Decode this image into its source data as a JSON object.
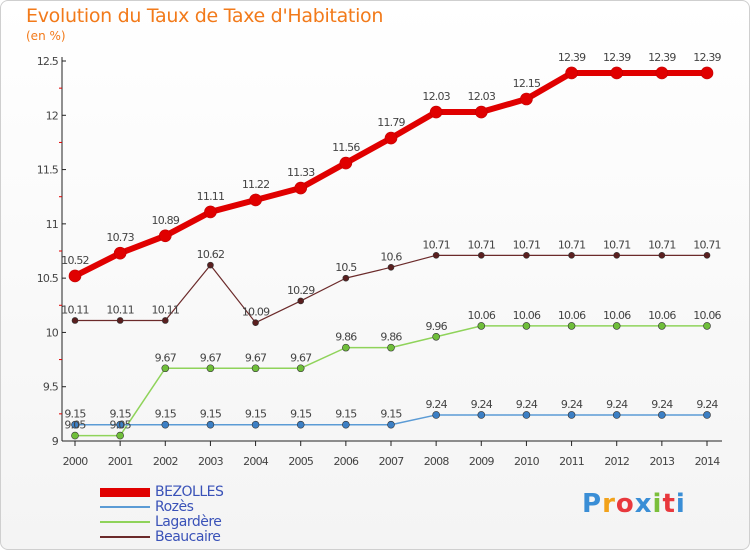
{
  "title": "Evolution du Taux de Taxe d'Habitation",
  "subtitle": "(en %)",
  "logo_text": "Proxiti",
  "chart_data": {
    "type": "line",
    "title": "Evolution du Taux de Taxe d'Habitation",
    "subtitle": "(en %)",
    "xlabel": "",
    "ylabel": "",
    "x": [
      "2000",
      "2001",
      "2002",
      "2003",
      "2004",
      "2005",
      "2006",
      "2007",
      "2008",
      "2009",
      "2010",
      "2011",
      "2012",
      "2013",
      "2014"
    ],
    "ylim": [
      9,
      12.5
    ],
    "yticks": [
      "9",
      "9.5",
      "10",
      "10.5",
      "11",
      "11.5",
      "12",
      "12.5"
    ],
    "grid": false,
    "legend_position": "bottom-left",
    "series": [
      {
        "name": "BEZOLLES",
        "color": "#e00000",
        "values": [
          10.52,
          10.73,
          10.89,
          11.11,
          11.22,
          11.33,
          11.56,
          11.79,
          12.03,
          12.03,
          12.15,
          12.39,
          12.39,
          12.39,
          12.39
        ]
      },
      {
        "name": "Rozès",
        "color": "#5b9bd5",
        "values": [
          9.15,
          9.15,
          9.15,
          9.15,
          9.15,
          9.15,
          9.15,
          9.15,
          9.24,
          9.24,
          9.24,
          9.24,
          9.24,
          9.24,
          9.24
        ]
      },
      {
        "name": "Lagardère",
        "color": "#8fd35a",
        "values": [
          9.05,
          9.05,
          9.67,
          9.67,
          9.67,
          9.67,
          9.86,
          9.86,
          9.96,
          10.06,
          10.06,
          10.06,
          10.06,
          10.06,
          10.06
        ]
      },
      {
        "name": "Beaucaire",
        "color": "#6b2a2a",
        "values": [
          10.11,
          10.11,
          10.11,
          10.62,
          10.09,
          10.29,
          10.5,
          10.6,
          10.71,
          10.71,
          10.71,
          10.71,
          10.71,
          10.71,
          10.71
        ]
      }
    ],
    "data_labels": {
      "BEZOLLES": [
        "10.52",
        "10.73",
        "10.89",
        "11.11",
        "11.22",
        "11.33",
        "11.56",
        "11.79",
        "12.03",
        "12.03",
        "12.15",
        "12.39",
        "12.39",
        "12.39",
        "12.39"
      ],
      "Rozès": [
        "9.15",
        "9.15",
        "9.15",
        "9.15",
        "9.15",
        "9.15",
        "9.15",
        "9.15",
        "9.24",
        "9.24",
        "9.24",
        "9.24",
        "9.24",
        "9.24",
        "9.24"
      ],
      "Lagardère": [
        "9.05",
        "9.05",
        "9.67",
        "9.67",
        "9.67",
        "9.67",
        "9.86",
        "9.86",
        "9.96",
        "10.06",
        "10.06",
        "10.06",
        "10.06",
        "10.06",
        "10.06"
      ],
      "Beaucaire": [
        "10.11",
        "10.11",
        "10.11",
        "10.62",
        "10.09",
        "10.29",
        "10.5",
        "10.6",
        "10.71",
        "10.71",
        "10.71",
        "10.71",
        "10.71",
        "10.71",
        "10.71"
      ]
    }
  }
}
